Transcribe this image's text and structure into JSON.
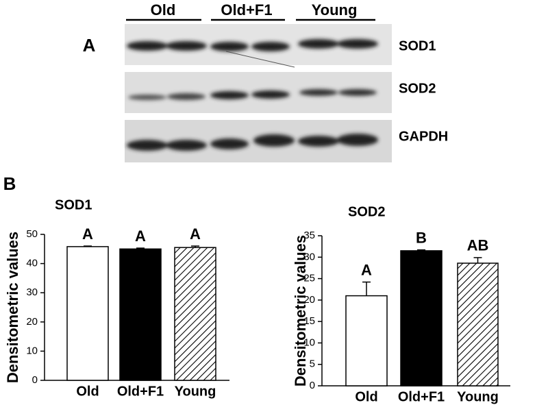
{
  "blot": {
    "panel_label": "A",
    "groups": [
      "Old",
      "Old+F1",
      "Young"
    ],
    "bands": [
      "SOD1",
      "SOD2",
      "GAPDH"
    ]
  },
  "panel_label_b": "B",
  "chart_data": [
    {
      "type": "bar",
      "title": "SOD1",
      "y_label": "Densitometric values",
      "categories": [
        "Old",
        "Old+F1",
        "Young"
      ],
      "values": [
        45.8,
        45.0,
        45.5
      ],
      "errors": [
        0.2,
        0.3,
        0.5
      ],
      "letters": [
        "A",
        "A",
        "A"
      ],
      "fills": [
        "#ffffff",
        "#000000",
        "hatch"
      ],
      "ylim": [
        0,
        50
      ],
      "yticks": [
        0,
        10,
        20,
        30,
        40,
        50
      ]
    },
    {
      "type": "bar",
      "title": "SOD2",
      "y_label": "Densitometric values",
      "categories": [
        "Old",
        "Old+F1",
        "Young"
      ],
      "values": [
        21.0,
        31.5,
        28.6
      ],
      "errors": [
        3.2,
        0.2,
        1.3
      ],
      "letters": [
        "A",
        "B",
        "AB"
      ],
      "fills": [
        "#ffffff",
        "#000000",
        "hatch"
      ],
      "ylim": [
        0,
        35
      ],
      "yticks": [
        0,
        5,
        10,
        15,
        20,
        25,
        30,
        35
      ]
    }
  ]
}
